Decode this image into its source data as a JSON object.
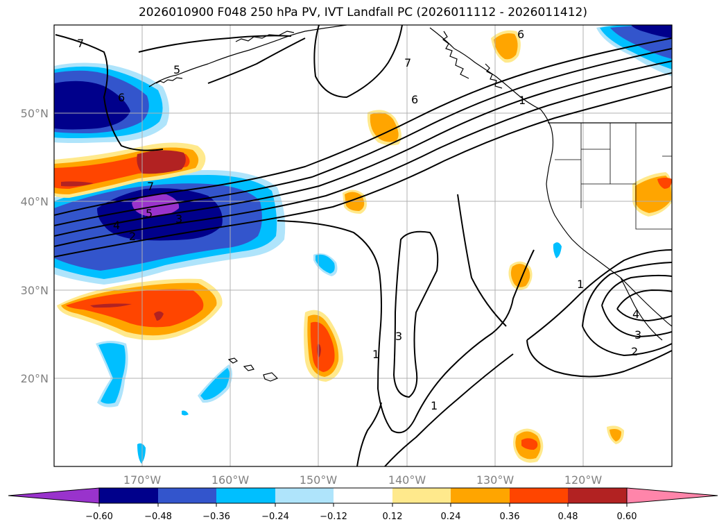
{
  "title": "2026010900 F048 250 hPa PV, IVT Landfall PC (2026011112 - 2026011412)",
  "map": {
    "projection": "PlateCarree",
    "lon_range_deg": [
      -180,
      -110
    ],
    "lat_range_deg": [
      10,
      60
    ],
    "lat_labels": [
      "50°N",
      "40°N",
      "30°N",
      "20°N"
    ],
    "lon_labels": [
      "170°W",
      "160°W",
      "150°W",
      "140°W",
      "130°W",
      "120°W"
    ],
    "filled_field": "250 hPa PV anomaly (shaded)",
    "contour_field": "IVT Landfall PC (black contours)",
    "contour_labels": [
      "7",
      "5",
      "6",
      "6",
      "7",
      "6",
      "7",
      "5",
      "4",
      "3",
      "2",
      "1",
      "3",
      "1",
      "1",
      "1",
      "2",
      "3",
      "4"
    ]
  },
  "colorbar": {
    "ticks": [
      "−0.60",
      "−0.48",
      "−0.36",
      "−0.24",
      "−0.12",
      "0.12",
      "0.24",
      "0.36",
      "0.48",
      "0.60"
    ],
    "colors": [
      "#9933cc",
      "#00008b",
      "#3355cc",
      "#00bfff",
      "#afe4fb",
      "#ffffff",
      "#ffe98c",
      "#ffa500",
      "#ff4500",
      "#b22222",
      "#ff85aa"
    ]
  }
}
